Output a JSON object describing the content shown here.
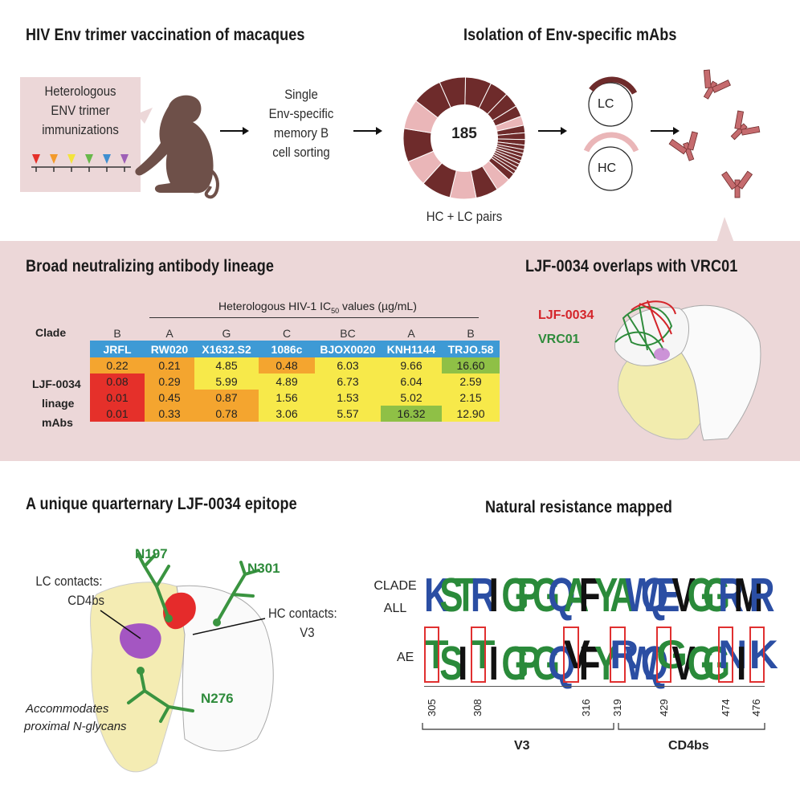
{
  "top": {
    "left_title": "HIV Env trimer vaccination of macaques",
    "right_title": "Isolation of Env-specific mAbs",
    "immunization_box": [
      "Heterologous",
      "ENV trimer",
      "immunizations"
    ],
    "sorting_text": [
      "Single",
      "Env-specific",
      "memory B",
      "cell sorting"
    ],
    "donut_center": "185",
    "donut_caption": "HC + LC pairs",
    "lc_label": "LC",
    "hc_label": "HC",
    "colors": {
      "maroon": "#6e2b2b",
      "pink": "#eab6b8",
      "antibody": "#c56b6e"
    }
  },
  "middle": {
    "left_title": "Broad neutralizing antibody lineage",
    "right_title": "LJF-0034 overlaps with VRC01",
    "table_super": "Heterologous HIV-1 IC",
    "table_super_sub": "50",
    "table_super_unit": " values (µg/mL)",
    "clade_label": "Clade",
    "row_label": [
      "LJF-0034",
      "linage",
      "mAbs"
    ],
    "clades": [
      "B",
      "A",
      "G",
      "C",
      "BC",
      "A",
      "B"
    ],
    "strains": [
      "JRFL",
      "RW020",
      "X1632.S2",
      "1086c",
      "BJOX0020",
      "KNH1144",
      "TRJO.58"
    ],
    "rows": [
      [
        {
          "v": "0.22",
          "c": "orange"
        },
        {
          "v": "0.21",
          "c": "orange"
        },
        {
          "v": "4.85",
          "c": "yellow"
        },
        {
          "v": "0.48",
          "c": "orange"
        },
        {
          "v": "6.03",
          "c": "yellow"
        },
        {
          "v": "9.66",
          "c": "yellow"
        },
        {
          "v": "16.60",
          "c": "green"
        }
      ],
      [
        {
          "v": "0.08",
          "c": "red"
        },
        {
          "v": "0.29",
          "c": "orange"
        },
        {
          "v": "5.99",
          "c": "yellow"
        },
        {
          "v": "4.89",
          "c": "yellow"
        },
        {
          "v": "6.73",
          "c": "yellow"
        },
        {
          "v": "6.04",
          "c": "yellow"
        },
        {
          "v": "2.59",
          "c": "yellow"
        }
      ],
      [
        {
          "v": "0.01",
          "c": "red"
        },
        {
          "v": "0.45",
          "c": "orange"
        },
        {
          "v": "0.87",
          "c": "orange"
        },
        {
          "v": "1.56",
          "c": "yellow"
        },
        {
          "v": "1.53",
          "c": "yellow"
        },
        {
          "v": "5.02",
          "c": "yellow"
        },
        {
          "v": "2.15",
          "c": "yellow"
        }
      ],
      [
        {
          "v": "0.01",
          "c": "red"
        },
        {
          "v": "0.33",
          "c": "orange"
        },
        {
          "v": "0.78",
          "c": "orange"
        },
        {
          "v": "3.06",
          "c": "yellow"
        },
        {
          "v": "5.57",
          "c": "yellow"
        },
        {
          "v": "16.32",
          "c": "green"
        },
        {
          "v": "12.90",
          "c": "yellow"
        }
      ]
    ],
    "legend_ljf": "LJF-0034",
    "legend_vrc": "VRC01",
    "colors": {
      "ljf": "#d4242a",
      "vrc": "#2e8b3b"
    }
  },
  "bottom": {
    "left_title": "A unique quarternary LJF-0034 epitope",
    "right_title": "Natural resistance mapped",
    "glycans": [
      "N197",
      "N301",
      "N276"
    ],
    "lc_contacts": [
      "LC contacts:",
      "CD4bs"
    ],
    "hc_contacts": [
      "HC contacts:",
      "V3"
    ],
    "accommodates": [
      "Accommodates",
      "proximal N-glycans"
    ],
    "logo_row1_label": [
      "CLADE",
      "ALL"
    ],
    "logo_row2_label": "AE",
    "logo_row1": [
      "K",
      "S",
      "T",
      "R",
      "I",
      "G",
      "P",
      "G",
      "Q",
      "A",
      "F",
      "Y",
      "A",
      "W",
      "Q",
      "E",
      "V",
      "G",
      "G",
      "R",
      "M",
      "R"
    ],
    "logo_row2": [
      "T",
      "S",
      "I",
      "T",
      "I",
      "G",
      "P",
      "G",
      "Q",
      "V",
      "F",
      "Y",
      "R",
      "W",
      "Q",
      "G",
      "V",
      "G",
      "G",
      "N",
      "I",
      "K"
    ],
    "positions": [
      "305",
      "308",
      "316",
      "319",
      "429",
      "474",
      "476"
    ],
    "region_v3": "V3",
    "region_cd4bs": "CD4bs"
  }
}
